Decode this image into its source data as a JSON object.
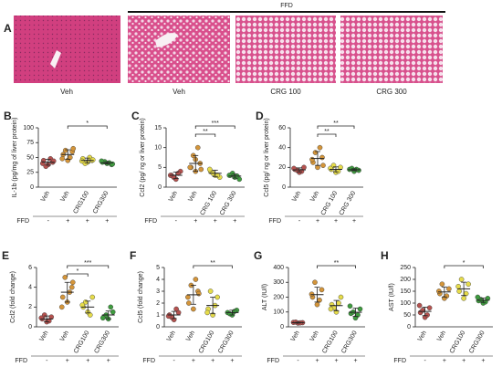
{
  "panel_a": {
    "panel": "A",
    "group_label": "FFD",
    "captions": [
      "Veh",
      "Veh",
      "CRG 100",
      "CRG 300"
    ]
  },
  "chart_data": [
    {
      "type": "dotplot",
      "panel": "B",
      "ylabel": "IL-1b (pg/mg of liver protein)",
      "categories": [
        "Veh",
        "Veh",
        "CRG100",
        "CRG300"
      ],
      "colors": [
        "#b5524f",
        "#d4953a",
        "#e6dc4a",
        "#3f9b3f"
      ],
      "points": [
        [
          38,
          45,
          42,
          35,
          48,
          40,
          44
        ],
        [
          45,
          55,
          60,
          62,
          50,
          48,
          65
        ],
        [
          42,
          48,
          45,
          40,
          50,
          44,
          46
        ],
        [
          40,
          42,
          38,
          43,
          41,
          44,
          39
        ]
      ],
      "means": [
        42,
        55,
        45,
        41
      ],
      "sds": [
        5,
        8,
        4,
        2
      ],
      "ylim": [
        0,
        100
      ],
      "yticks": [
        0,
        25,
        50,
        75,
        100
      ],
      "significance": [
        {
          "from": 1,
          "to": 3,
          "label": "*"
        }
      ],
      "row_label": "FFD",
      "row_values": [
        "-",
        "+",
        "+",
        "+"
      ]
    },
    {
      "type": "dotplot",
      "panel": "C",
      "ylabel": "Ccl2 (pg/ ng or liver protein)",
      "categories": [
        "Veh",
        "Veh",
        "CRG 100",
        "CRG 300"
      ],
      "colors": [
        "#b5524f",
        "#d4953a",
        "#e6dc4a",
        "#3f9b3f"
      ],
      "points": [
        [
          2,
          3,
          4,
          2.5,
          3.5,
          3
        ],
        [
          4,
          5,
          6,
          8,
          10,
          5,
          4.5,
          7
        ],
        [
          3,
          4,
          2.5,
          3.5,
          3,
          4.5
        ],
        [
          2.5,
          3,
          2,
          3.5,
          2.8,
          3
        ]
      ],
      "means": [
        3,
        6,
        3.5,
        2.8
      ],
      "sds": [
        0.8,
        2,
        0.8,
        0.5
      ],
      "ylim": [
        0,
        15
      ],
      "yticks": [
        0,
        5,
        10,
        15
      ],
      "significance": [
        {
          "from": 1,
          "to": 3,
          "label": "***"
        },
        {
          "from": 1,
          "to": 2,
          "label": "**"
        }
      ],
      "row_label": "FFD",
      "row_values": [
        "-",
        "+",
        "+",
        "+"
      ]
    },
    {
      "type": "dotplot",
      "panel": "D",
      "ylabel": "Ccl5 (pg/ ng or liver protein)",
      "categories": [
        "Veh",
        "Veh",
        "CRG 100",
        "CRG 300"
      ],
      "colors": [
        "#b5524f",
        "#d4953a",
        "#e6dc4a",
        "#3f9b3f"
      ],
      "points": [
        [
          15,
          18,
          20,
          17,
          16,
          19
        ],
        [
          20,
          25,
          30,
          35,
          40,
          28,
          22
        ],
        [
          15,
          18,
          20,
          22,
          16,
          19
        ],
        [
          16,
          18,
          17,
          19,
          18
        ]
      ],
      "means": [
        17.5,
        29,
        18,
        17.6
      ],
      "sds": [
        2,
        7,
        2.5,
        1
      ],
      "ylim": [
        0,
        60
      ],
      "yticks": [
        0,
        20,
        40,
        60
      ],
      "significance": [
        {
          "from": 1,
          "to": 3,
          "label": "**"
        },
        {
          "from": 1,
          "to": 2,
          "label": "**"
        }
      ],
      "row_label": "FFD",
      "row_values": [
        "-",
        "+",
        "+",
        "+"
      ]
    },
    {
      "type": "dotplot",
      "panel": "E",
      "ylabel": "Ccl2 (fold change)",
      "categories": [
        "Veh",
        "Veh",
        "CRG100",
        "CRG300"
      ],
      "colors": [
        "#b5524f",
        "#d4953a",
        "#e6dc4a",
        "#3f9b3f"
      ],
      "points": [
        [
          0.5,
          0.8,
          1,
          1.2,
          0.6,
          0.9
        ],
        [
          2.5,
          3,
          4,
          5,
          3.5,
          2,
          4.5
        ],
        [
          1.5,
          2,
          3,
          2.5,
          1.2,
          2.2
        ],
        [
          0.8,
          1,
          1.5,
          1.2,
          2,
          0.9
        ]
      ],
      "means": [
        0.8,
        3.5,
        2,
        1.2
      ],
      "sds": [
        0.3,
        1,
        0.6,
        0.4
      ],
      "ylim": [
        0,
        6
      ],
      "yticks": [
        0,
        2,
        4,
        6
      ],
      "significance": [
        {
          "from": 1,
          "to": 3,
          "label": "***"
        },
        {
          "from": 1,
          "to": 2,
          "label": "*"
        }
      ],
      "row_label": "FFD",
      "row_values": [
        "-",
        "+",
        "+",
        "+"
      ]
    },
    {
      "type": "dotplot",
      "panel": "F",
      "ylabel": "Ccl5 (fold change)",
      "categories": [
        "Veh",
        "Veh",
        "CRG100",
        "CRG300"
      ],
      "colors": [
        "#b5524f",
        "#d4953a",
        "#e6dc4a",
        "#3f9b3f"
      ],
      "points": [
        [
          0.6,
          1,
          1.2,
          0.8,
          1.5,
          0.9
        ],
        [
          1.5,
          2,
          3,
          3.5,
          4,
          2.5,
          2.8
        ],
        [
          1,
          1.5,
          2.5,
          3,
          1.8,
          1.2
        ],
        [
          1,
          1.2,
          1.4,
          1.1,
          1.3
        ]
      ],
      "means": [
        1,
        2.7,
        1.8,
        1.2
      ],
      "sds": [
        0.3,
        0.8,
        0.7,
        0.2
      ],
      "ylim": [
        0,
        5
      ],
      "yticks": [
        0,
        1,
        2,
        3,
        4,
        5
      ],
      "significance": [
        {
          "from": 1,
          "to": 3,
          "label": "**"
        }
      ],
      "row_label": "FFD",
      "row_values": [
        "-",
        "+",
        "+",
        "+"
      ]
    },
    {
      "type": "dotplot",
      "panel": "G",
      "ylabel": "ALT (IU/l)",
      "categories": [
        "Veh",
        "Veh",
        "CRG100",
        "CRG300"
      ],
      "colors": [
        "#b5524f",
        "#d4953a",
        "#e6dc4a",
        "#3f9b3f"
      ],
      "points": [
        [
          25,
          30,
          28,
          32,
          27
        ],
        [
          150,
          200,
          250,
          300,
          180,
          220
        ],
        [
          100,
          150,
          200,
          130,
          160,
          120
        ],
        [
          60,
          90,
          120,
          100,
          80,
          140
        ]
      ],
      "means": [
        28,
        217,
        143,
        98
      ],
      "sds": [
        3,
        50,
        35,
        28
      ],
      "ylim": [
        0,
        400
      ],
      "yticks": [
        0,
        100,
        200,
        300,
        400
      ],
      "significance": [
        {
          "from": 1,
          "to": 3,
          "label": "**"
        }
      ],
      "row_label": "FFD",
      "row_values": [
        "-",
        "+",
        "+",
        "+"
      ]
    },
    {
      "type": "dotplot",
      "panel": "H",
      "ylabel": "AST (IU/l)",
      "categories": [
        "Veh",
        "Veh",
        "CRG100",
        "CRG300"
      ],
      "colors": [
        "#b5524f",
        "#d4953a",
        "#e6dc4a",
        "#3f9b3f"
      ],
      "points": [
        [
          40,
          60,
          80,
          70,
          50,
          90
        ],
        [
          120,
          140,
          160,
          180,
          130,
          150
        ],
        [
          120,
          150,
          180,
          200,
          140,
          170
        ],
        [
          100,
          110,
          120,
          115,
          105,
          125
        ]
      ],
      "means": [
        65,
        147,
        160,
        112
      ],
      "sds": [
        18,
        21,
        28,
        9
      ],
      "ylim": [
        0,
        250
      ],
      "yticks": [
        0,
        50,
        100,
        150,
        200,
        250
      ],
      "significance": [
        {
          "from": 1,
          "to": 3,
          "label": "*"
        }
      ],
      "row_label": "FFD",
      "row_values": [
        "-",
        "+",
        "+",
        "+"
      ]
    }
  ]
}
